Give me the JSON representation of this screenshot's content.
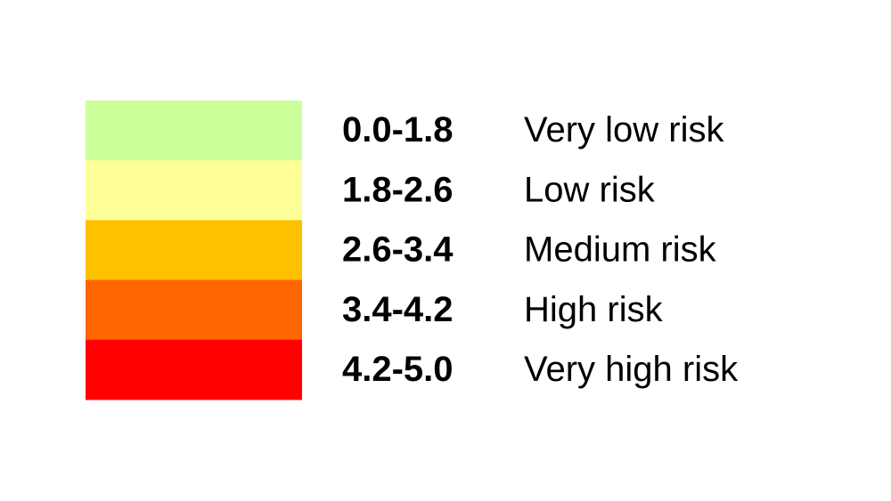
{
  "legend": {
    "rows": [
      {
        "range": "0.0-1.8",
        "label": "Very low risk",
        "color": "#ccff99"
      },
      {
        "range": "1.8-2.6",
        "label": "Low risk",
        "color": "#ffff99"
      },
      {
        "range": "2.6-3.4",
        "label": "Medium risk",
        "color": "#ffc000"
      },
      {
        "range": "3.4-4.2",
        "label": "High risk",
        "color": "#ff6600"
      },
      {
        "range": "4.2-5.0",
        "label": "Very high risk",
        "color": "#ff0000"
      }
    ]
  }
}
